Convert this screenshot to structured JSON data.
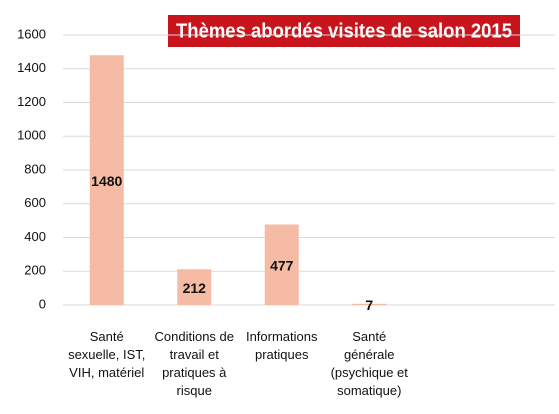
{
  "chart_data": {
    "type": "bar",
    "title": "Thèmes abordés visites de salon 2015",
    "categories": [
      "Santé\nsexuelle, IST,\nVIH, matériel",
      "Conditions de\ntravail et\npratiques à\nrisque",
      "Informations\npratiques",
      "Santé\ngénérale\n(psychique et\nsomatique)"
    ],
    "values": [
      1480,
      212,
      477,
      7
    ],
    "color": "#f5bba5",
    "title_color": "#c8141c",
    "ylim": [
      0,
      1600
    ],
    "yticks": [
      0,
      200,
      400,
      600,
      800,
      1000,
      1200,
      1400,
      1600
    ],
    "grid": true
  }
}
